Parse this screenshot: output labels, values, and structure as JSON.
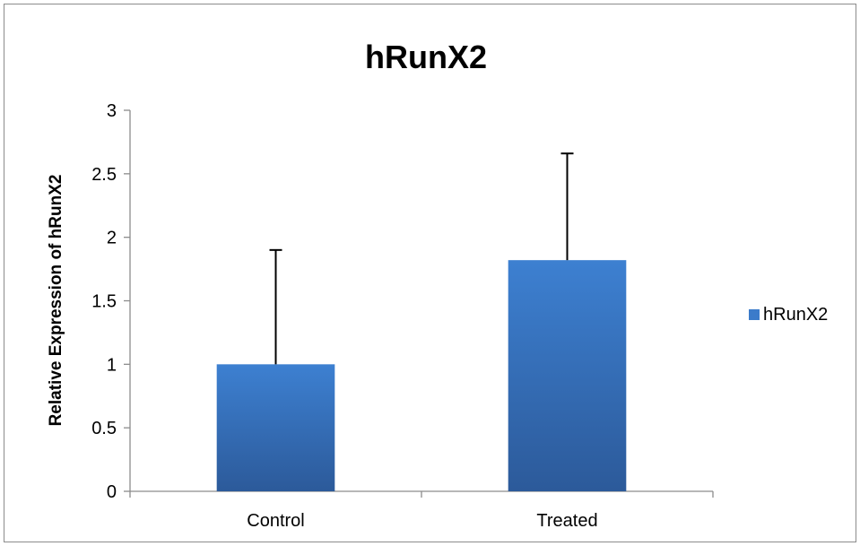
{
  "chart_data": {
    "type": "bar",
    "title": "hRunX2",
    "xlabel": "",
    "ylabel": "Relative Expression of hRunX2",
    "categories": [
      "Control",
      "Treated"
    ],
    "series": [
      {
        "name": "hRunX2",
        "values": [
          1.0,
          1.82
        ],
        "error_plus": [
          0.9,
          0.84
        ],
        "color": "#3b7bca"
      }
    ],
    "ylim": [
      0,
      3
    ],
    "yticks": [
      "0",
      "0.5",
      "1",
      "1.5",
      "2",
      "2.5",
      "3"
    ],
    "grid": false,
    "legend_position": "right"
  }
}
